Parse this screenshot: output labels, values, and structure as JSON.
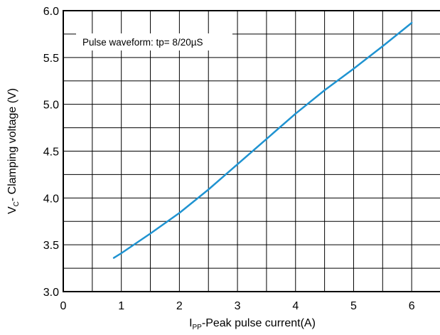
{
  "chart_data": {
    "type": "line",
    "xlabel": {
      "main": "I",
      "sub": "PP",
      "rest": "-Peak pulse current(A)"
    },
    "ylabel": {
      "main": "V",
      "sub": "C",
      "rest": "- Clamping voltage (V)"
    },
    "xlim": [
      0,
      6.5
    ],
    "ylim": [
      3.0,
      6.0
    ],
    "x_ticks": [
      "0",
      "1",
      "2",
      "3",
      "4",
      "5",
      "6"
    ],
    "y_ticks": [
      "3.0",
      "3.5",
      "4.0",
      "4.5",
      "5.0",
      "5.5",
      "6.0"
    ],
    "grid": true,
    "annotation": {
      "prefix": "Pulse waveform: tp= 8/20",
      "mu": "µ",
      "suffix": "S"
    },
    "series": [
      {
        "color": "#1f93d1",
        "x": [
          0.87,
          1.0,
          1.5,
          2.0,
          2.5,
          3.0,
          3.5,
          4.0,
          4.5,
          5.0,
          5.5,
          6.0
        ],
        "y": [
          3.36,
          3.41,
          3.62,
          3.84,
          4.09,
          4.36,
          4.63,
          4.9,
          5.15,
          5.38,
          5.62,
          5.87
        ]
      }
    ]
  }
}
